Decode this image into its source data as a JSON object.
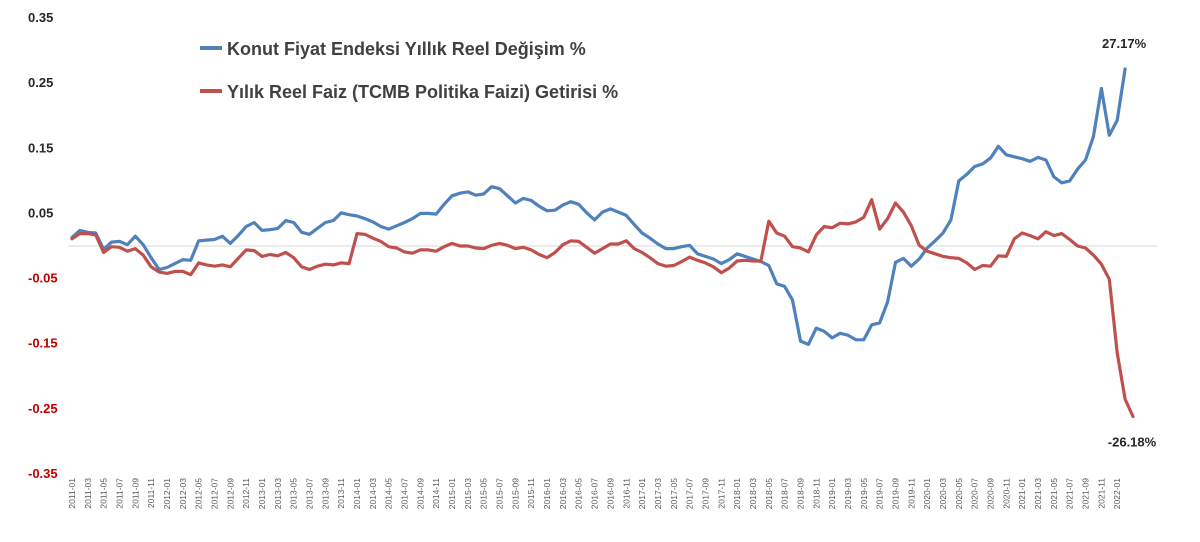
{
  "chart_data": {
    "type": "line",
    "title": "",
    "xlabel": "",
    "ylabel": "",
    "ylim": [
      -0.35,
      0.35
    ],
    "yticks": [
      0.35,
      0.25,
      0.15,
      0.05,
      -0.05,
      -0.15,
      -0.25,
      -0.35
    ],
    "ytick_labels": [
      "0.35",
      "0.25",
      "0.15",
      "0.05",
      "-0.05",
      "-0.15",
      "-0.25",
      "-0.35"
    ],
    "ytick_colors": [
      "#262626",
      "#262626",
      "#262626",
      "#262626",
      "#c00000",
      "#c00000",
      "#c00000",
      "#c00000"
    ],
    "grid": false,
    "legend_placement": "top-left",
    "start_month": "2011-01",
    "months_count": 135,
    "tick_labels": [
      "2011-01",
      "2011-03",
      "2011-05",
      "2011-07",
      "2011-09",
      "2011-11",
      "2012-01",
      "2012-03",
      "2012-05",
      "2012-07",
      "2012-09",
      "2012-11",
      "2013-01",
      "2013-03",
      "2013-05",
      "2013-07",
      "2013-09",
      "2013-11",
      "2014-01",
      "2014-03",
      "2014-05",
      "2014-07",
      "2014-09",
      "2014-11",
      "2015-01",
      "2015-03",
      "2015-05",
      "2015-07",
      "2015-09",
      "2015-11",
      "2016-01",
      "2016-03",
      "2016-05",
      "2016-07",
      "2016-09",
      "2016-11",
      "2017-01",
      "2017-03",
      "2017-05",
      "2017-07",
      "2017-09",
      "2017-11",
      "2018-01",
      "2018-03",
      "2018-05",
      "2018-07",
      "2018-09",
      "2018-11",
      "2019-01",
      "2019-03",
      "2019-05",
      "2019-07",
      "2019-09",
      "2019-11",
      "2020-01",
      "2020-03",
      "2020-05",
      "2020-07",
      "2020-09",
      "2020-11",
      "2021-01",
      "2021-03",
      "2021-05",
      "2021-07",
      "2021-09",
      "2021-11",
      "2022-01"
    ],
    "series": [
      {
        "name": "Konut Fiyat Endeksi Yıllık Reel Değişim %",
        "color": "#4f81bd",
        "keyframes": [
          [
            0,
            0.013
          ],
          [
            1,
            0.024
          ],
          [
            2,
            0.021
          ],
          [
            3,
            0.02
          ],
          [
            4,
            -0.005
          ],
          [
            5,
            0.006
          ],
          [
            6,
            0.007
          ],
          [
            7,
            0.002
          ],
          [
            8,
            0.015
          ],
          [
            9,
            0.002
          ],
          [
            10,
            -0.018
          ],
          [
            11,
            -0.036
          ],
          [
            12,
            -0.033
          ],
          [
            13,
            -0.027
          ],
          [
            14,
            -0.021
          ],
          [
            15,
            -0.022
          ],
          [
            16,
            0.008
          ],
          [
            17,
            0.009
          ],
          [
            18,
            0.01
          ],
          [
            19,
            0.015
          ],
          [
            20,
            0.004
          ],
          [
            21,
            0.016
          ],
          [
            22,
            0.03
          ],
          [
            23,
            0.036
          ],
          [
            24,
            0.024
          ],
          [
            25,
            0.025
          ],
          [
            26,
            0.027
          ],
          [
            27,
            0.039
          ],
          [
            28,
            0.036
          ],
          [
            29,
            0.021
          ],
          [
            30,
            0.018
          ],
          [
            31,
            0.027
          ],
          [
            32,
            0.036
          ],
          [
            33,
            0.039
          ],
          [
            34,
            0.051
          ],
          [
            35,
            0.048
          ],
          [
            36,
            0.046
          ],
          [
            37,
            0.042
          ],
          [
            38,
            0.037
          ],
          [
            39,
            0.03
          ],
          [
            40,
            0.026
          ],
          [
            41,
            0.031
          ],
          [
            42,
            0.036
          ],
          [
            43,
            0.042
          ],
          [
            44,
            0.05
          ],
          [
            45,
            0.05
          ],
          [
            46,
            0.049
          ],
          [
            47,
            0.064
          ],
          [
            48,
            0.077
          ],
          [
            49,
            0.081
          ],
          [
            50,
            0.083
          ],
          [
            51,
            0.078
          ],
          [
            52,
            0.08
          ],
          [
            53,
            0.091
          ],
          [
            54,
            0.088
          ],
          [
            55,
            0.077
          ],
          [
            56,
            0.066
          ],
          [
            57,
            0.073
          ],
          [
            58,
            0.07
          ],
          [
            59,
            0.061
          ],
          [
            60,
            0.054
          ],
          [
            61,
            0.055
          ],
          [
            62,
            0.063
          ],
          [
            63,
            0.068
          ],
          [
            64,
            0.064
          ],
          [
            65,
            0.051
          ],
          [
            66,
            0.04
          ],
          [
            67,
            0.052
          ],
          [
            68,
            0.057
          ],
          [
            69,
            0.052
          ],
          [
            70,
            0.047
          ],
          [
            71,
            0.033
          ],
          [
            72,
            0.02
          ],
          [
            73,
            0.012
          ],
          [
            74,
            0.003
          ],
          [
            75,
            -0.004
          ],
          [
            76,
            -0.004
          ],
          [
            77,
            -0.001
          ],
          [
            78,
            0.001
          ],
          [
            79,
            -0.012
          ],
          [
            80,
            -0.016
          ],
          [
            81,
            -0.02
          ],
          [
            82,
            -0.027
          ],
          [
            83,
            -0.021
          ],
          [
            84,
            -0.012
          ],
          [
            85,
            -0.016
          ],
          [
            86,
            -0.02
          ],
          [
            87,
            -0.024
          ],
          [
            88,
            -0.03
          ],
          [
            89,
            -0.058
          ],
          [
            90,
            -0.062
          ],
          [
            91,
            -0.083
          ],
          [
            92,
            -0.146
          ],
          [
            93,
            -0.151
          ],
          [
            94,
            -0.126
          ],
          [
            95,
            -0.131
          ],
          [
            96,
            -0.141
          ],
          [
            97,
            -0.134
          ],
          [
            98,
            -0.137
          ],
          [
            99,
            -0.144
          ],
          [
            100,
            -0.144
          ],
          [
            101,
            -0.121
          ],
          [
            102,
            -0.118
          ],
          [
            103,
            -0.086
          ],
          [
            104,
            -0.025
          ],
          [
            105,
            -0.019
          ],
          [
            106,
            -0.031
          ],
          [
            107,
            -0.02
          ],
          [
            108,
            -0.003
          ],
          [
            109,
            0.008
          ],
          [
            110,
            0.02
          ],
          [
            111,
            0.04
          ],
          [
            112,
            0.1
          ],
          [
            113,
            0.11
          ],
          [
            114,
            0.122
          ],
          [
            115,
            0.126
          ],
          [
            116,
            0.135
          ],
          [
            117,
            0.153
          ],
          [
            118,
            0.14
          ],
          [
            119,
            0.137
          ],
          [
            120,
            0.134
          ],
          [
            121,
            0.13
          ],
          [
            122,
            0.136
          ],
          [
            123,
            0.132
          ],
          [
            124,
            0.106
          ],
          [
            125,
            0.097
          ],
          [
            126,
            0.1
          ],
          [
            127,
            0.118
          ],
          [
            128,
            0.132
          ],
          [
            129,
            0.168
          ],
          [
            130,
            0.242
          ],
          [
            131,
            0.17
          ],
          [
            132,
            0.193
          ],
          [
            133,
            0.2717
          ]
        ]
      },
      {
        "name": "Yılık Reel Faiz (TCMB Politika Faizi) Getirisi %",
        "color": "#c0504d",
        "keyframes": [
          [
            0,
            0.011
          ],
          [
            1,
            0.019
          ],
          [
            2,
            0.019
          ],
          [
            3,
            0.017
          ],
          [
            4,
            -0.01
          ],
          [
            5,
            -0.001
          ],
          [
            6,
            -0.002
          ],
          [
            7,
            -0.008
          ],
          [
            8,
            -0.004
          ],
          [
            9,
            -0.014
          ],
          [
            10,
            -0.032
          ],
          [
            11,
            -0.04
          ],
          [
            12,
            -0.042
          ],
          [
            13,
            -0.039
          ],
          [
            14,
            -0.039
          ],
          [
            15,
            -0.044
          ],
          [
            16,
            -0.026
          ],
          [
            17,
            -0.029
          ],
          [
            18,
            -0.031
          ],
          [
            19,
            -0.029
          ],
          [
            20,
            -0.032
          ],
          [
            21,
            -0.019
          ],
          [
            22,
            -0.006
          ],
          [
            23,
            -0.007
          ],
          [
            24,
            -0.016
          ],
          [
            25,
            -0.013
          ],
          [
            26,
            -0.015
          ],
          [
            27,
            -0.01
          ],
          [
            28,
            -0.018
          ],
          [
            29,
            -0.032
          ],
          [
            30,
            -0.036
          ],
          [
            31,
            -0.031
          ],
          [
            32,
            -0.028
          ],
          [
            33,
            -0.029
          ],
          [
            34,
            -0.026
          ],
          [
            35,
            -0.027
          ],
          [
            36,
            0.019
          ],
          [
            37,
            0.018
          ],
          [
            38,
            0.012
          ],
          [
            39,
            0.007
          ],
          [
            40,
            -0.001
          ],
          [
            41,
            -0.003
          ],
          [
            42,
            -0.009
          ],
          [
            43,
            -0.011
          ],
          [
            44,
            -0.006
          ],
          [
            45,
            -0.006
          ],
          [
            46,
            -0.008
          ],
          [
            47,
            -0.001
          ],
          [
            48,
            0.004
          ],
          [
            49,
            0.0
          ],
          [
            50,
            0.0
          ],
          [
            51,
            -0.003
          ],
          [
            52,
            -0.004
          ],
          [
            53,
            0.001
          ],
          [
            54,
            0.004
          ],
          [
            55,
            0.001
          ],
          [
            56,
            -0.004
          ],
          [
            57,
            -0.002
          ],
          [
            58,
            -0.006
          ],
          [
            59,
            -0.013
          ],
          [
            60,
            -0.018
          ],
          [
            61,
            -0.01
          ],
          [
            62,
            0.002
          ],
          [
            63,
            0.008
          ],
          [
            64,
            0.007
          ],
          [
            65,
            -0.002
          ],
          [
            66,
            -0.011
          ],
          [
            67,
            -0.004
          ],
          [
            68,
            0.003
          ],
          [
            69,
            0.003
          ],
          [
            70,
            0.008
          ],
          [
            71,
            -0.004
          ],
          [
            72,
            -0.01
          ],
          [
            73,
            -0.018
          ],
          [
            74,
            -0.027
          ],
          [
            75,
            -0.031
          ],
          [
            76,
            -0.03
          ],
          [
            77,
            -0.024
          ],
          [
            78,
            -0.017
          ],
          [
            79,
            -0.022
          ],
          [
            80,
            -0.026
          ],
          [
            81,
            -0.032
          ],
          [
            82,
            -0.041
          ],
          [
            83,
            -0.034
          ],
          [
            84,
            -0.023
          ],
          [
            85,
            -0.022
          ],
          [
            86,
            -0.023
          ],
          [
            87,
            -0.023
          ],
          [
            88,
            0.038
          ],
          [
            89,
            0.02
          ],
          [
            90,
            0.015
          ],
          [
            91,
            -0.001
          ],
          [
            92,
            -0.003
          ],
          [
            93,
            -0.009
          ],
          [
            94,
            0.017
          ],
          [
            95,
            0.03
          ],
          [
            96,
            0.028
          ],
          [
            97,
            0.035
          ],
          [
            98,
            0.034
          ],
          [
            99,
            0.037
          ],
          [
            100,
            0.044
          ],
          [
            101,
            0.071
          ],
          [
            102,
            0.026
          ],
          [
            103,
            0.042
          ],
          [
            104,
            0.066
          ],
          [
            105,
            0.052
          ],
          [
            106,
            0.031
          ],
          [
            107,
            0.001
          ],
          [
            108,
            -0.008
          ],
          [
            109,
            -0.012
          ],
          [
            110,
            -0.016
          ],
          [
            111,
            -0.018
          ],
          [
            112,
            -0.019
          ],
          [
            113,
            -0.026
          ],
          [
            114,
            -0.036
          ],
          [
            115,
            -0.03
          ],
          [
            116,
            -0.031
          ],
          [
            117,
            -0.015
          ],
          [
            118,
            -0.016
          ],
          [
            119,
            0.011
          ],
          [
            120,
            0.02
          ],
          [
            121,
            0.016
          ],
          [
            122,
            0.011
          ],
          [
            123,
            0.022
          ],
          [
            124,
            0.016
          ],
          [
            125,
            0.019
          ],
          [
            126,
            0.01
          ],
          [
            127,
            0.0
          ],
          [
            128,
            -0.003
          ],
          [
            129,
            -0.014
          ],
          [
            130,
            -0.028
          ],
          [
            131,
            -0.051
          ],
          [
            132,
            -0.164
          ],
          [
            133,
            -0.235
          ],
          [
            134,
            -0.2618
          ]
        ]
      }
    ],
    "annotations": [
      {
        "text": "27.17%",
        "series": 0,
        "month_index": 133,
        "placement": "above"
      },
      {
        "text": "-26.18%",
        "series": 1,
        "month_index": 134,
        "placement": "below"
      }
    ]
  }
}
